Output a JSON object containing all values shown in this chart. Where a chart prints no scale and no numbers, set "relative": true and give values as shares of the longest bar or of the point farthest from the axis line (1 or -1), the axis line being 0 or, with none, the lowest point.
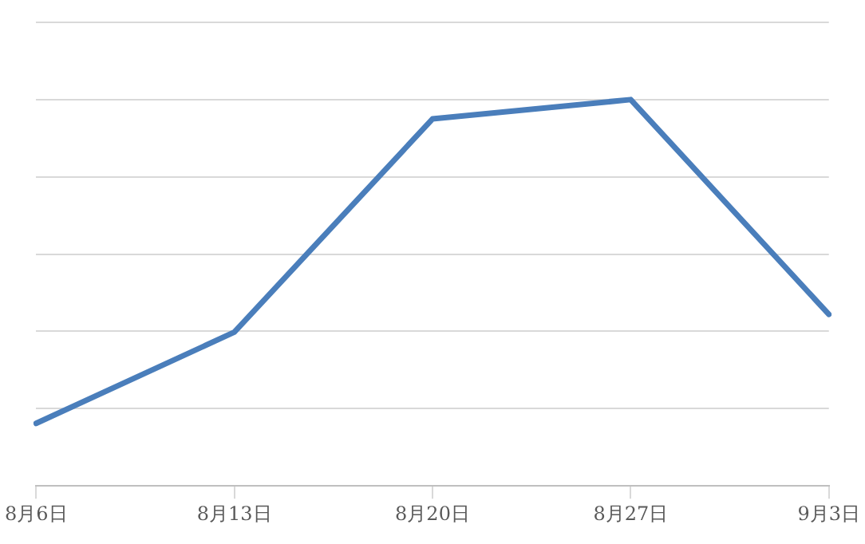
{
  "chart_data": {
    "type": "line",
    "relative": true,
    "categories": [
      "8月6日",
      "8月13日",
      "8月20日",
      "8月27日",
      "9月3日"
    ],
    "series": [
      {
        "color": "#4a7ebb",
        "values": [
          0.162,
          0.398,
          0.95,
          1,
          0.444
        ]
      }
    ],
    "grid": "y",
    "legend": false,
    "marker": "none",
    "line_style": "solid"
  }
}
